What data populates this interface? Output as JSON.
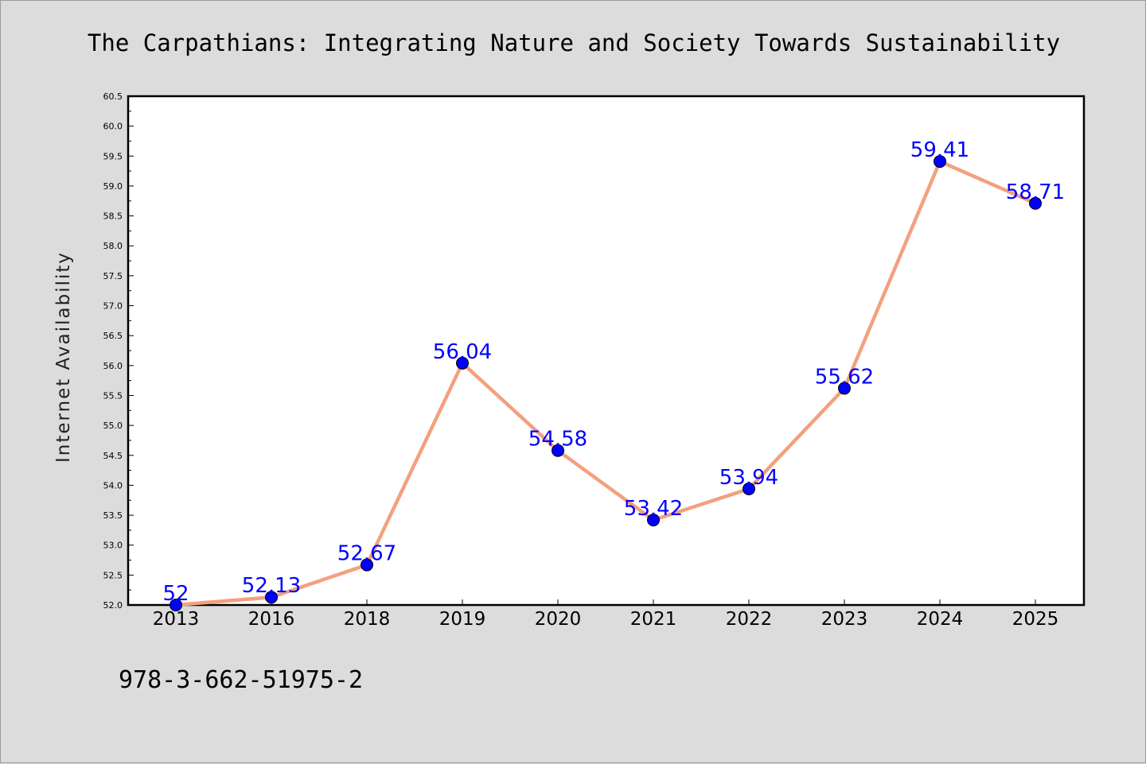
{
  "chart_data": {
    "type": "line",
    "title": "The Carpathians: Integrating Nature and Society Towards Sustainability",
    "xlabel": "",
    "ylabel": "Internet Availability",
    "categories": [
      "2013",
      "2016",
      "2018",
      "2019",
      "2020",
      "2021",
      "2022",
      "2023",
      "2024",
      "2025"
    ],
    "series": [
      {
        "values": [
          52,
          52.13,
          52.67,
          56.04,
          54.58,
          53.42,
          53.94,
          55.62,
          59.41,
          58.71
        ]
      }
    ],
    "data_labels": [
      "52",
      "52.13",
      "52.67",
      "56.04",
      "54.58",
      "53.42",
      "53.94",
      "55.62",
      "59.41",
      "58.71"
    ],
    "ylim": [
      52.0,
      60.5
    ],
    "yticks": [
      "52.0",
      "52.5",
      "53.0",
      "53.5",
      "54.0",
      "54.5",
      "55.0",
      "55.5",
      "56.0",
      "56.5",
      "57.0",
      "57.5",
      "58.0",
      "58.5",
      "59.0",
      "59.5",
      "60.0",
      "60.5"
    ],
    "grid": false,
    "legend": "none",
    "colors": {
      "background": "#dcdcdc",
      "plot_area": "#ffffff",
      "line": "#f4a07e",
      "marker": "#0000ff",
      "data_label": "#0000ff",
      "text": "#000000"
    }
  },
  "footer_text": "978-3-662-51975-2"
}
